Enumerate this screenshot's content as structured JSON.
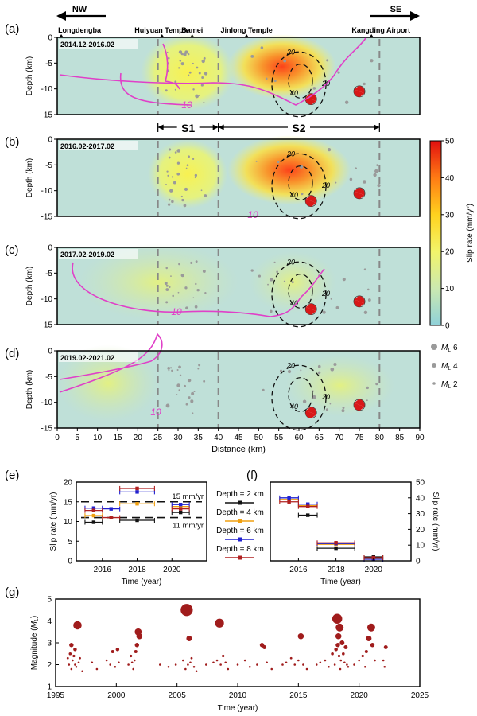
{
  "panels_abcd": {
    "letters": [
      "(a)",
      "(b)",
      "(c)",
      "(d)"
    ],
    "periods": [
      "2014.12-2016.02",
      "2016.02-2017.02",
      "2017.02-2019.02",
      "2019.02-2021.02"
    ],
    "direction_left": "NW",
    "direction_right": "SE",
    "places": [
      {
        "name": "Longdengba",
        "km": 1
      },
      {
        "name": "Huiyuan Temple",
        "km": 26
      },
      {
        "name": "Bamei",
        "km": 33.5
      },
      {
        "name": "Jinlong Temple",
        "km": 47
      },
      {
        "name": "Kangding Airport",
        "km": 78
      }
    ],
    "segments": [
      {
        "label": "S1",
        "from_km": 25,
        "to_km": 40
      },
      {
        "label": "S2",
        "from_km": 40,
        "to_km": 80
      }
    ],
    "ylabel": "Depth (km)",
    "xlabel": "Distance (km)",
    "xlim": [
      0,
      90
    ],
    "ylim": [
      -15,
      0
    ],
    "xticks": [
      "0",
      "5",
      "10",
      "15",
      "20",
      "25",
      "30",
      "35",
      "40",
      "45",
      "50",
      "55",
      "60",
      "65",
      "70",
      "75",
      "80",
      "85",
      "90"
    ],
    "yticks": [
      "0",
      "-5",
      "-10",
      "-15"
    ],
    "contour_magenta": [
      "10",
      "10",
      "10",
      "10"
    ],
    "contour_black": [
      "20",
      "40",
      "20"
    ],
    "colorbar": {
      "label": "Slip rate (mm/yr)",
      "range": [
        0,
        50
      ],
      "ticks": [
        "0",
        "10",
        "20",
        "30",
        "40",
        "50"
      ]
    },
    "magnitude_legend": [
      {
        "prefix": "M",
        "sub": "L",
        "value": "6"
      },
      {
        "prefix": "M",
        "sub": "L",
        "value": "4"
      },
      {
        "prefix": "M",
        "sub": "L",
        "value": "2"
      }
    ],
    "colors": {
      "magenta": "#e040c8",
      "background": "#bfe0d8"
    }
  },
  "chart_data": [
    {
      "id": "e",
      "type": "scatter",
      "letter": "(e)",
      "xlabel": "Time (year)",
      "ylabel": "Slip rate (mm/yr)",
      "xlim": [
        2014.5,
        2022
      ],
      "ylim": [
        0,
        20
      ],
      "xticks": [
        "2016",
        "2018",
        "2020"
      ],
      "yticks": [
        "0",
        "5",
        "10",
        "15",
        "20"
      ],
      "reference_lines": [
        {
          "label": "15 mm/yr",
          "value": 15
        },
        {
          "label": "11 mm/yr",
          "value": 11
        }
      ],
      "series": [
        {
          "name": "Depth = 2 km",
          "color": "#111111",
          "points": [
            [
              2015.5,
              9.8
            ],
            [
              2018.0,
              10.3
            ],
            [
              2020.5,
              12.3
            ]
          ]
        },
        {
          "name": "Depth = 4 km",
          "color": "#f0a010",
          "points": [
            [
              2015.5,
              11.5
            ],
            [
              2018.0,
              14.5
            ],
            [
              2020.5,
              13.8
            ]
          ]
        },
        {
          "name": "Depth = 6 km",
          "color": "#2020d0",
          "points": [
            [
              2015.5,
              13.4
            ],
            [
              2016.5,
              13.2
            ],
            [
              2018.0,
              17.5
            ],
            [
              2020.5,
              14.3
            ]
          ]
        },
        {
          "name": "Depth = 8 km",
          "color": "#b02020",
          "points": [
            [
              2015.5,
              12.8
            ],
            [
              2016.5,
              11.0
            ],
            [
              2018.0,
              18.4
            ],
            [
              2020.5,
              13.2
            ]
          ]
        }
      ]
    },
    {
      "id": "f",
      "type": "scatter",
      "letter": "(f)",
      "xlabel": "Time (year)",
      "ylabel": "Slip rate (mm/yr)",
      "xlim": [
        2014.5,
        2022
      ],
      "ylim": [
        0,
        50
      ],
      "xticks": [
        "2016",
        "2018",
        "2020"
      ],
      "yticks": [
        "0",
        "10",
        "20",
        "30",
        "40",
        "50"
      ],
      "series": [
        {
          "name": "Depth = 2 km",
          "color": "#111111",
          "points": [
            [
              2016.5,
              29.0
            ],
            [
              2018.0,
              8.0
            ],
            [
              2020.0,
              2.5
            ]
          ]
        },
        {
          "name": "Depth = 4 km",
          "color": "#f0a010",
          "points": [
            [
              2015.5,
              39.0
            ],
            [
              2016.5,
              35.0
            ],
            [
              2018.0,
              10.5
            ],
            [
              2020.0,
              1.5
            ]
          ]
        },
        {
          "name": "Depth = 6 km",
          "color": "#2020d0",
          "points": [
            [
              2015.5,
              40.0
            ],
            [
              2016.5,
              36.0
            ],
            [
              2018.0,
              11.0
            ],
            [
              2020.0,
              1.0
            ]
          ]
        },
        {
          "name": "Depth = 8 km",
          "color": "#b02020",
          "points": [
            [
              2015.5,
              37.5
            ],
            [
              2016.5,
              34.5
            ],
            [
              2018.0,
              11.5
            ],
            [
              2020.0,
              2.0
            ]
          ]
        }
      ]
    },
    {
      "id": "g",
      "type": "scatter",
      "letter": "(g)",
      "xlabel": "Time (year)",
      "ylabel_prefix": "Magnitude (",
      "ylabel_sym": "M",
      "ylabel_sub": "L",
      "ylabel_suffix": ")",
      "xlim": [
        1995,
        2025
      ],
      "ylim": [
        1,
        5
      ],
      "xticks": [
        "1995",
        "2000",
        "2005",
        "2010",
        "2015",
        "2020",
        "2025"
      ],
      "yticks": [
        "1",
        "2",
        "3",
        "4",
        "5"
      ],
      "color": "#a01c1c",
      "points": [
        [
          1996.0,
          2.3
        ],
        [
          1996.1,
          2.0
        ],
        [
          1996.2,
          2.5
        ],
        [
          1996.3,
          1.8
        ],
        [
          1996.4,
          2.2
        ],
        [
          1996.5,
          2.4
        ],
        [
          1996.6,
          2.0
        ],
        [
          1996.7,
          1.9
        ],
        [
          1996.8,
          3.8
        ],
        [
          1996.9,
          2.1
        ],
        [
          1997.0,
          2.3
        ],
        [
          1997.2,
          1.7
        ],
        [
          1996.6,
          2.7
        ],
        [
          1996.3,
          2.9
        ],
        [
          1998.0,
          2.1
        ],
        [
          1998.4,
          1.8
        ],
        [
          1999.2,
          2.2
        ],
        [
          1999.5,
          2.0
        ],
        [
          1999.7,
          2.6
        ],
        [
          1999.9,
          1.9
        ],
        [
          2000.2,
          2.1
        ],
        [
          2000.1,
          2.7
        ],
        [
          2001.0,
          2.0
        ],
        [
          2001.2,
          2.4
        ],
        [
          2001.4,
          1.8
        ],
        [
          2001.5,
          2.2
        ],
        [
          2001.6,
          2.6
        ],
        [
          2001.7,
          2.9
        ],
        [
          2001.8,
          3.5
        ],
        [
          2001.9,
          3.3
        ],
        [
          2001.3,
          2.1
        ],
        [
          2003.6,
          2.0
        ],
        [
          2004.3,
          1.9
        ],
        [
          2004.9,
          2.0
        ],
        [
          2005.5,
          2.2
        ],
        [
          2005.7,
          1.8
        ],
        [
          2005.8,
          4.5
        ],
        [
          2005.9,
          2.0
        ],
        [
          2006.0,
          3.2
        ],
        [
          2006.1,
          2.1
        ],
        [
          2006.2,
          2.3
        ],
        [
          2006.4,
          1.9
        ],
        [
          2006.6,
          1.7
        ],
        [
          2007.4,
          2.0
        ],
        [
          2008.0,
          2.1
        ],
        [
          2008.3,
          2.2
        ],
        [
          2008.5,
          3.9
        ],
        [
          2008.6,
          2.0
        ],
        [
          2008.8,
          2.4
        ],
        [
          2009.0,
          2.1
        ],
        [
          2009.2,
          1.8
        ],
        [
          2010.0,
          2.0
        ],
        [
          2010.6,
          2.2
        ],
        [
          2011.0,
          1.9
        ],
        [
          2011.6,
          2.0
        ],
        [
          2012.0,
          2.9
        ],
        [
          2012.2,
          2.8
        ],
        [
          2012.4,
          2.1
        ],
        [
          2012.8,
          1.8
        ],
        [
          2013.7,
          2.0
        ],
        [
          2014.0,
          2.1
        ],
        [
          2014.4,
          2.3
        ],
        [
          2014.7,
          2.0
        ],
        [
          2015.0,
          2.2
        ],
        [
          2015.2,
          3.3
        ],
        [
          2015.4,
          2.0
        ],
        [
          2015.7,
          1.8
        ],
        [
          2016.5,
          2.0
        ],
        [
          2016.8,
          2.1
        ],
        [
          2017.2,
          2.2
        ],
        [
          2017.5,
          1.9
        ],
        [
          2017.8,
          2.5
        ],
        [
          2018.0,
          2.0
        ],
        [
          2018.1,
          2.7
        ],
        [
          2018.2,
          4.1
        ],
        [
          2018.3,
          3.3
        ],
        [
          2018.4,
          3.7
        ],
        [
          2018.5,
          2.2
        ],
        [
          2018.6,
          3.0
        ],
        [
          2018.7,
          2.5
        ],
        [
          2018.8,
          2.1
        ],
        [
          2018.9,
          2.8
        ],
        [
          2019.0,
          2.0
        ],
        [
          2019.1,
          1.9
        ],
        [
          2018.25,
          2.9
        ],
        [
          2018.35,
          2.4
        ],
        [
          2018.45,
          1.8
        ],
        [
          2019.6,
          2.0
        ],
        [
          2020.0,
          2.2
        ],
        [
          2020.3,
          2.4
        ],
        [
          2020.6,
          2.6
        ],
        [
          2020.8,
          3.2
        ],
        [
          2021.0,
          3.7
        ],
        [
          2021.1,
          2.9
        ],
        [
          2021.3,
          2.2
        ],
        [
          2020.5,
          1.9
        ],
        [
          2022.0,
          2.2
        ],
        [
          2022.2,
          2.8
        ],
        [
          2022.1,
          1.9
        ]
      ]
    }
  ]
}
